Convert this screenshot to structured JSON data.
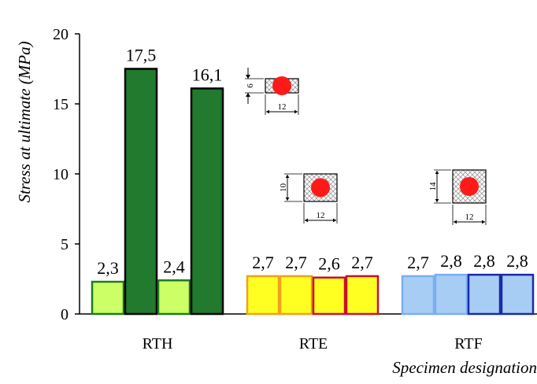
{
  "chart_data": {
    "type": "bar",
    "xlabel": "Specimen designation",
    "ylabel": "Stress at ultimate (MPa)",
    "ylim": [
      0,
      20
    ],
    "yticks": [
      "0",
      "5",
      "10",
      "15",
      "20"
    ],
    "grid": false,
    "groups": [
      {
        "name": "RTH",
        "bars": [
          {
            "value": 2.3,
            "label": "2,3",
            "fill": "#ccff66",
            "stroke": "#1f7a1f"
          },
          {
            "value": 17.5,
            "label": "17,5",
            "fill": "#217a2e",
            "stroke": "#000000"
          },
          {
            "value": 2.4,
            "label": "2,4",
            "fill": "#ccff66",
            "stroke": "#1f7a1f"
          },
          {
            "value": 16.1,
            "label": "16,1",
            "fill": "#217a2e",
            "stroke": "#000000"
          }
        ],
        "inset": {
          "dim_left": "6",
          "dim_bottom": "12"
        }
      },
      {
        "name": "RTE",
        "bars": [
          {
            "value": 2.7,
            "label": "2,7",
            "fill": "#ffff22",
            "stroke": "#f2a01c"
          },
          {
            "value": 2.7,
            "label": "2,7",
            "fill": "#ffff22",
            "stroke": "#f2a01c"
          },
          {
            "value": 2.6,
            "label": "2,6",
            "fill": "#ffff22",
            "stroke": "#c8102e"
          },
          {
            "value": 2.7,
            "label": "2,7",
            "fill": "#ffff22",
            "stroke": "#c8102e"
          }
        ],
        "inset": {
          "dim_left": "10",
          "dim_bottom": "12"
        }
      },
      {
        "name": "RTF",
        "bars": [
          {
            "value": 2.7,
            "label": "2,7",
            "fill": "#a8cdf5",
            "stroke": "#7aaef0"
          },
          {
            "value": 2.8,
            "label": "2,8",
            "fill": "#a8cdf5",
            "stroke": "#7aaef0"
          },
          {
            "value": 2.8,
            "label": "2,8",
            "fill": "#a8cdf5",
            "stroke": "#1a2aa8"
          },
          {
            "value": 2.8,
            "label": "2,8",
            "fill": "#a8cdf5",
            "stroke": "#1a2aa8"
          }
        ],
        "inset": {
          "dim_left": "14",
          "dim_bottom": "12"
        }
      }
    ]
  }
}
